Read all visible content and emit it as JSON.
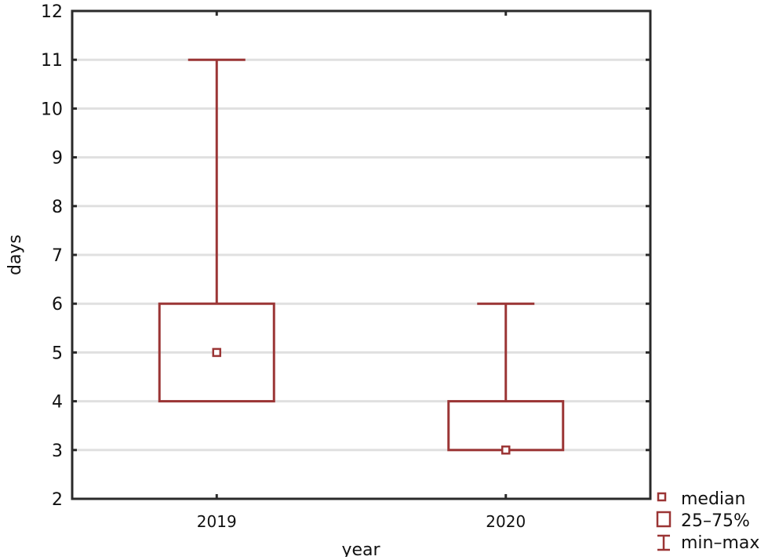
{
  "chart_data": {
    "type": "boxplot",
    "title": "",
    "xlabel": "year",
    "ylabel": "days",
    "ylim": [
      2,
      12
    ],
    "yticks": [
      2,
      3,
      4,
      5,
      6,
      7,
      8,
      9,
      10,
      11,
      12
    ],
    "grid": true,
    "categories": [
      "2019",
      "2020"
    ],
    "boxes": [
      {
        "category": "2019",
        "min": 4,
        "q1": 4,
        "median": 5,
        "q3": 6,
        "max": 11
      },
      {
        "category": "2020",
        "min": 3,
        "q1": 3,
        "median": 3,
        "q3": 4,
        "max": 6
      }
    ],
    "legend": {
      "placement": "bottom-right",
      "entries": [
        "median",
        "25–75%",
        "min–max"
      ]
    },
    "colors": {
      "series": "#9b3535",
      "grid": "#e0e0e0",
      "axis": "#2a2a2a"
    }
  }
}
